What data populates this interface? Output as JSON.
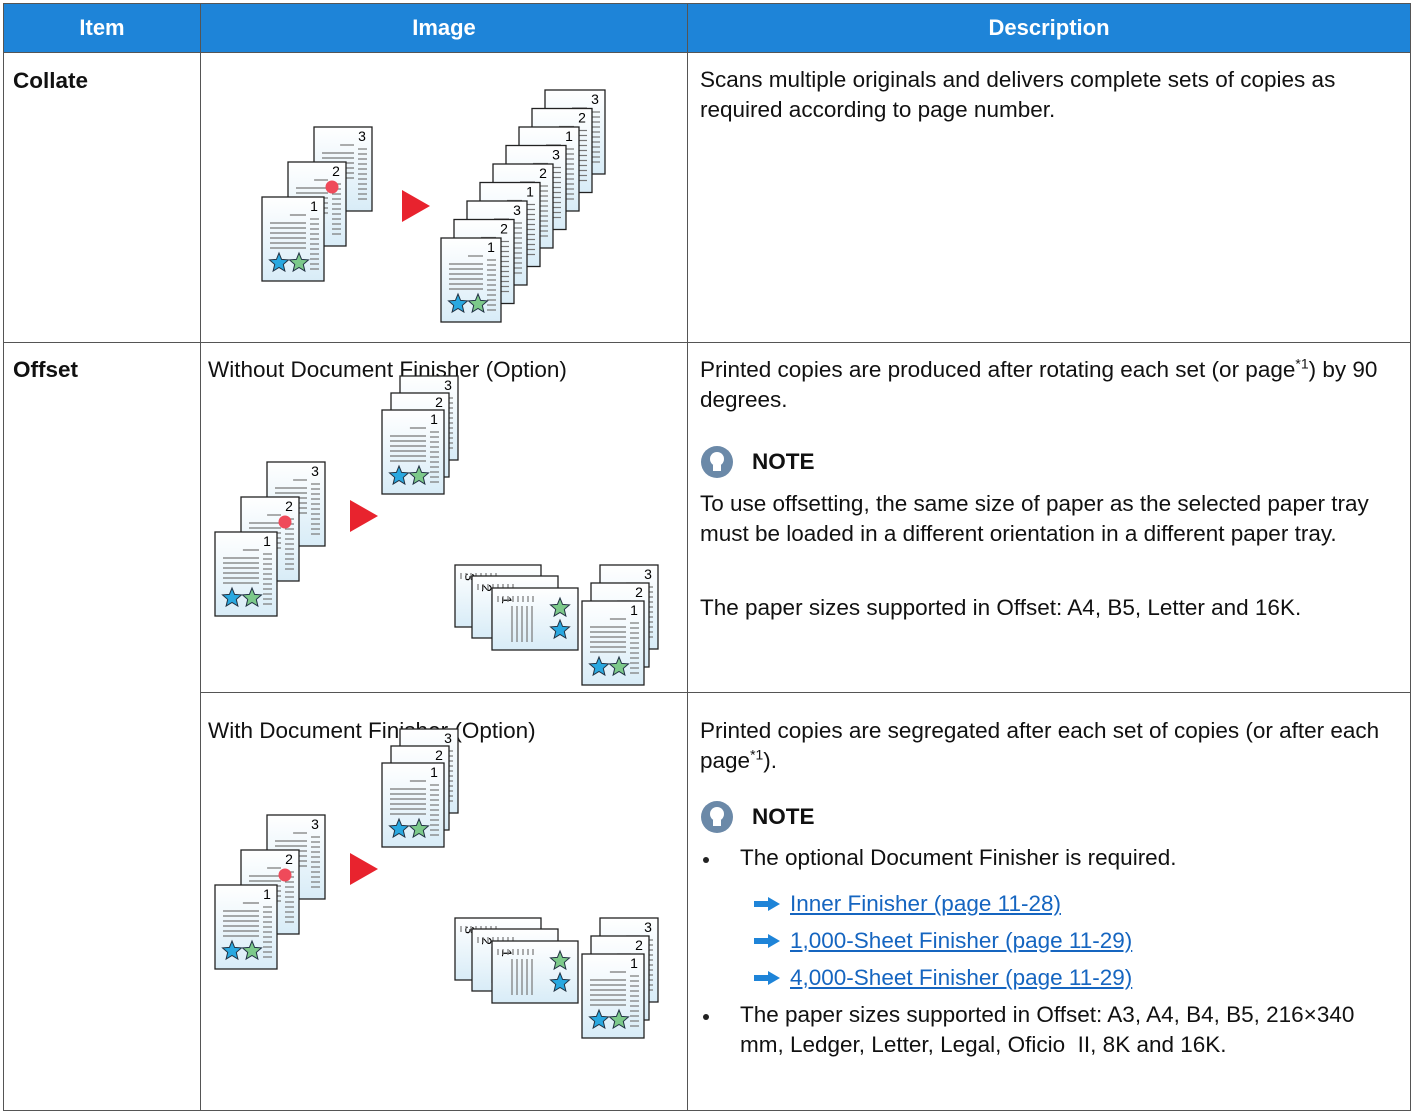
{
  "table": {
    "columns": [
      "Item",
      "Image",
      "Description"
    ],
    "rows": [
      {
        "item": "Collate",
        "description": "Scans multiple originals and delivers complete sets of copies as required according to page number."
      },
      {
        "item": "Offset",
        "variants": [
          {
            "caption": "Without Document Finisher (Option)",
            "description": {
              "before": "Printed copies are produced after rotating each set (or page",
              "footnote": "*1",
              "after": ") by 90 degrees."
            },
            "note": {
              "label": "NOTE",
              "paragraphs": [
                "To use offsetting, the same size of paper as the selected paper tray must be loaded in a different orientation in a different paper tray.",
                "The paper sizes supported in Offset: A4, B5, Letter and 16K."
              ]
            }
          },
          {
            "caption": "With Document Finisher (Option)",
            "description": {
              "before": "Printed copies are segregated after each set of copies (or after each page",
              "footnote": "*1",
              "after": ")."
            },
            "note": {
              "label": "NOTE",
              "bullets": [
                {
                  "text": "The optional Document Finisher is required.",
                  "links": [
                    "Inner Finisher (page 11-28)",
                    "1,000-Sheet Finisher (page 11-29)",
                    "4,000-Sheet Finisher (page 11-29)"
                  ]
                },
                {
                  "text": "The paper sizes supported in Offset: A3, A4, B4, B5, 216×340  mm, Ledger, Letter, Legal, Oficio  II, 8K and 16K."
                }
              ]
            }
          }
        ]
      }
    ]
  },
  "illustration_labels": [
    "1",
    "2",
    "3"
  ]
}
